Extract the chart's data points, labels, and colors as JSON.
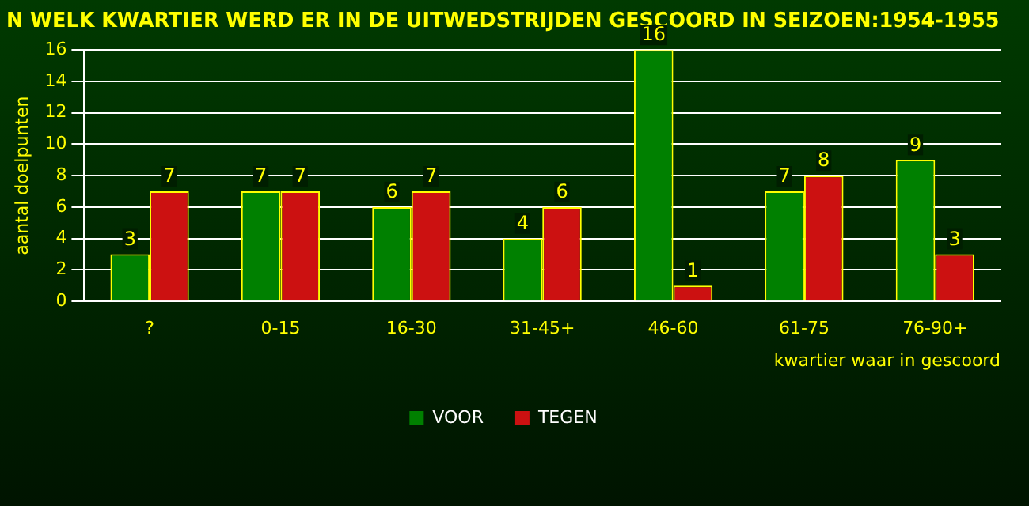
{
  "chart_data": {
    "type": "bar",
    "title": "N WELK KWARTIER WERD ER IN DE UITWEDSTRIJDEN GESCOORD IN SEIZOEN:1954-1955",
    "xlabel": "kwartier waar in gescoord",
    "ylabel": "aantal doelpunten",
    "categories": [
      "?",
      "0-15",
      "16-30",
      "31-45+",
      "46-60",
      "61-75",
      "76-90+"
    ],
    "series": [
      {
        "name": "VOOR",
        "color": "#008000",
        "values": [
          3,
          7,
          6,
          4,
          16,
          7,
          9
        ]
      },
      {
        "name": "TEGEN",
        "color": "#cc1111",
        "values": [
          7,
          7,
          7,
          6,
          1,
          8,
          3
        ]
      }
    ],
    "ylim": [
      0,
      16
    ],
    "yticks": [
      0,
      2,
      4,
      6,
      8,
      10,
      12,
      14,
      16
    ],
    "grid": "y",
    "legend": "bottom",
    "data_labels": true
  }
}
